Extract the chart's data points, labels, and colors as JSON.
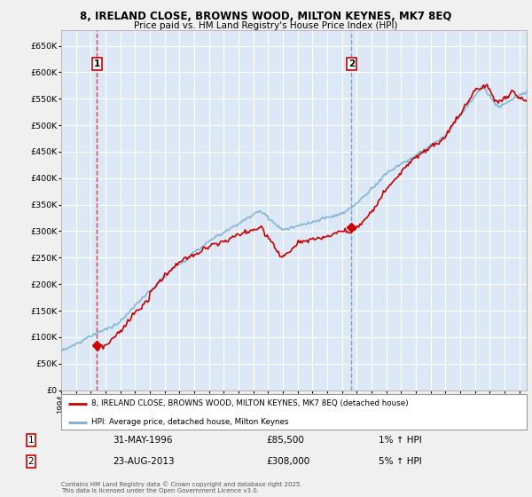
{
  "title1": "8, IRELAND CLOSE, BROWNS WOOD, MILTON KEYNES, MK7 8EQ",
  "title2": "Price paid vs. HM Land Registry's House Price Index (HPI)",
  "xlim_start": 1994.0,
  "xlim_end": 2025.5,
  "ylim": [
    0,
    680000
  ],
  "yticks": [
    0,
    50000,
    100000,
    150000,
    200000,
    250000,
    300000,
    350000,
    400000,
    450000,
    500000,
    550000,
    600000,
    650000
  ],
  "ytick_labels": [
    "£0",
    "£50K",
    "£100K",
    "£150K",
    "£200K",
    "£250K",
    "£300K",
    "£350K",
    "£400K",
    "£450K",
    "£500K",
    "£550K",
    "£600K",
    "£650K"
  ],
  "sale1_x": 1996.42,
  "sale1_y": 85500,
  "sale1_label": "1",
  "sale1_date": "31-MAY-1996",
  "sale1_price": "£85,500",
  "sale1_hpi": "1% ↑ HPI",
  "sale2_x": 2013.64,
  "sale2_y": 308000,
  "sale2_label": "2",
  "sale2_date": "23-AUG-2013",
  "sale2_price": "£308,000",
  "sale2_hpi": "5% ↑ HPI",
  "legend_line1": "8, IRELAND CLOSE, BROWNS WOOD, MILTON KEYNES, MK7 8EQ (detached house)",
  "legend_line2": "HPI: Average price, detached house, Milton Keynes",
  "footnote": "Contains HM Land Registry data © Crown copyright and database right 2025.\nThis data is licensed under the Open Government Licence v3.0.",
  "sale_color": "#cc0000",
  "hpi_color": "#7ab0d4",
  "plot_bg": "#dce8f5",
  "bg_color": "#f0f0f0",
  "grid_color": "#ffffff",
  "vline1_color": "#cc2222",
  "vline2_color": "#6699cc"
}
